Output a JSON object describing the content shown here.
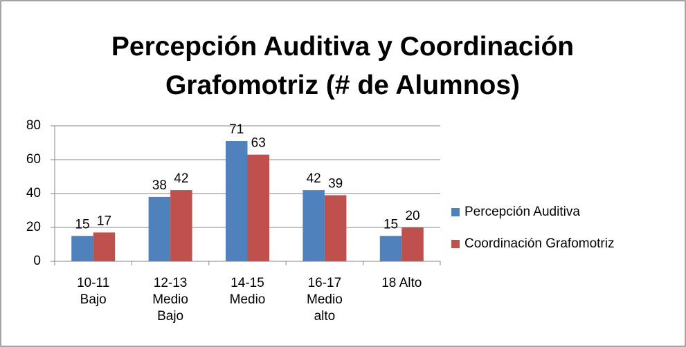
{
  "chart_data": {
    "type": "bar",
    "title": "Percepción Auditiva y Coordinación Grafomotriz (# de Alumnos)",
    "categories": [
      "10-11 Bajo",
      "12-13 Medio Bajo",
      "14-15 Medio",
      "16-17 Medio alto",
      "18 Alto"
    ],
    "series": [
      {
        "name": "Percepción Auditiva",
        "color": "#4f81bd",
        "values": [
          15,
          38,
          71,
          42,
          15
        ]
      },
      {
        "name": "Coordinación Grafomotriz",
        "color": "#c0504d",
        "values": [
          17,
          42,
          63,
          39,
          20
        ]
      }
    ],
    "ylim": [
      0,
      80
    ],
    "yticks": [
      0,
      20,
      40,
      60,
      80
    ],
    "grid": true,
    "legend": "right"
  }
}
